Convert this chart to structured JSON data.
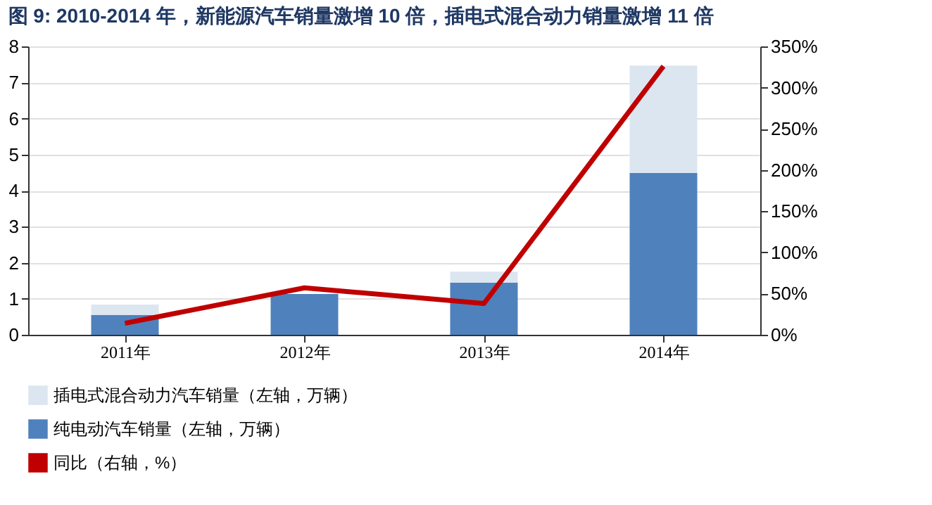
{
  "chart_data": {
    "type": "bar",
    "title": "图 9:  2010-2014 年，新能源汽车销量激增 10 倍，插电式混合动力销量激增 11 倍",
    "categories": [
      "2011年",
      "2012年",
      "2013年",
      "2014年"
    ],
    "stacked": true,
    "series": [
      {
        "name": "纯电动汽车销量（左轴，万辆）",
        "color": "#4f81bd",
        "values": [
          0.55,
          1.13,
          1.45,
          4.49
        ]
      },
      {
        "name": "插电式混合动力汽车销量（左轴，万辆）",
        "color": "#dce6f1",
        "values": [
          0.29,
          null,
          0.3,
          2.98
        ]
      },
      {
        "name": "同比（右轴，%）",
        "type": "line",
        "axis": "y2",
        "color": "#c00000",
        "values": [
          14,
          57,
          38,
          326
        ]
      }
    ],
    "ylim": [
      0,
      8
    ],
    "yticks": [
      0,
      1,
      2,
      3,
      4,
      5,
      6,
      7,
      8
    ],
    "y2lim": [
      0,
      350
    ],
    "y2ticks": [
      {
        "value": 0,
        "label": "0%"
      },
      {
        "value": 50,
        "label": "50%"
      },
      {
        "value": 100,
        "label": "100%"
      },
      {
        "value": 150,
        "label": "150%"
      },
      {
        "value": 200,
        "label": "200%"
      },
      {
        "value": 250,
        "label": "250%"
      },
      {
        "value": 300,
        "label": "300%"
      },
      {
        "value": 350,
        "label": "350%"
      }
    ],
    "grid": "y",
    "legend": "bottom",
    "marker": "none",
    "line_style": "solid"
  }
}
